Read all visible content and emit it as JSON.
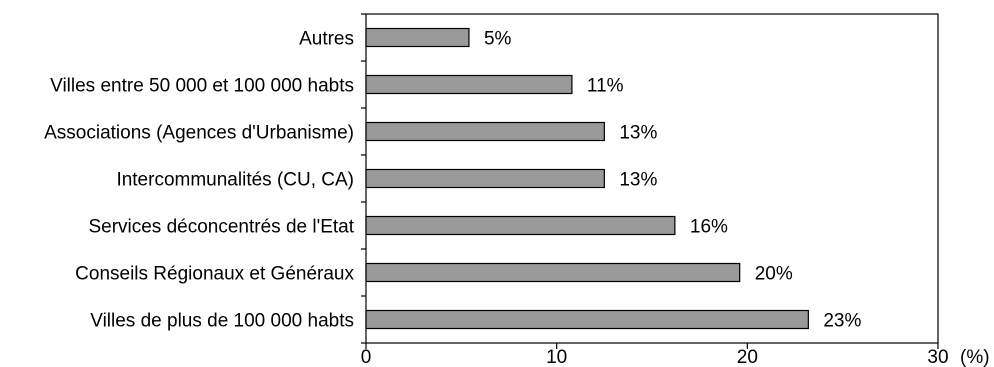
{
  "chart_data": {
    "type": "bar",
    "orientation": "horizontal",
    "categories": [
      "Autres",
      "Villes entre 50 000 et 100 000 habts",
      "Associations (Agences d'Urbanisme)",
      "Intercommunalités (CU, CA)",
      "Services déconcentrés de l'Etat",
      "Conseils Régionaux et Généraux",
      "Villes de plus de 100 000 habts"
    ],
    "values": [
      5.4,
      10.8,
      12.5,
      12.5,
      16.2,
      19.6,
      23.2
    ],
    "value_labels": [
      "5%",
      "11%",
      "13%",
      "13%",
      "16%",
      "20%",
      "23%"
    ],
    "xlim": [
      0,
      30
    ],
    "xticks": [
      "0",
      "10",
      "20",
      "30"
    ],
    "xlabel": "(%)",
    "colors": {
      "bar": "#999999",
      "bar_stroke": "#000000",
      "axis": "#000000"
    },
    "grid": false,
    "legend": "none"
  }
}
